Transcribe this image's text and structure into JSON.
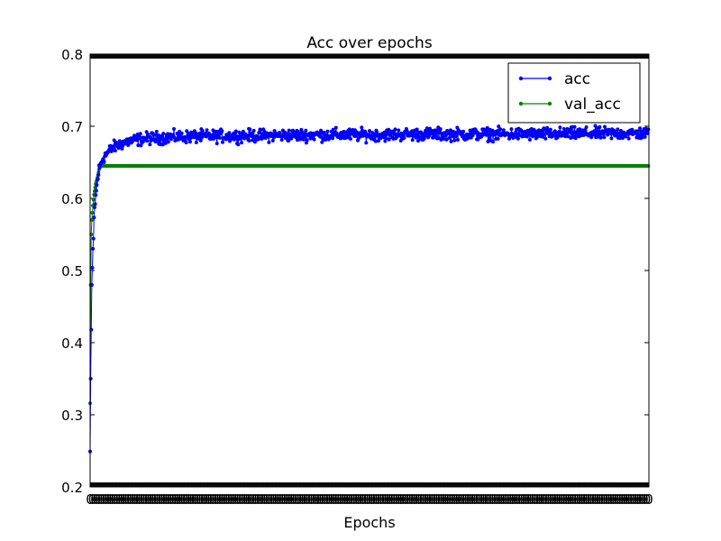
{
  "chart_data": {
    "type": "line",
    "title": "Acc over epochs",
    "xlabel": "Epochs",
    "ylabel": "",
    "ylim": [
      0.2,
      0.8
    ],
    "y_ticks": [
      "0.2",
      "0.3",
      "0.4",
      "0.5",
      "0.6",
      "0.7",
      "0.8"
    ],
    "x_range": [
      0,
      1000
    ],
    "x_tick_label": "0",
    "x_tick_count": 1000,
    "legend_position": "top-right",
    "series": [
      {
        "name": "acc",
        "color": "#0000ff",
        "marker": "dot",
        "x": [
          0,
          1,
          2,
          3,
          4,
          5,
          6,
          7,
          8,
          10,
          12,
          14,
          16,
          18,
          20,
          22,
          25,
          30,
          35,
          40,
          50,
          60,
          70,
          80,
          100,
          150,
          200,
          300,
          400,
          500,
          600,
          700,
          800,
          900,
          999
        ],
        "values": [
          0.249,
          0.35,
          0.418,
          0.48,
          0.503,
          0.523,
          0.542,
          0.57,
          0.587,
          0.602,
          0.618,
          0.63,
          0.64,
          0.645,
          0.65,
          0.654,
          0.658,
          0.662,
          0.666,
          0.67,
          0.674,
          0.677,
          0.679,
          0.681,
          0.683,
          0.685,
          0.686,
          0.687,
          0.688,
          0.688,
          0.689,
          0.689,
          0.689,
          0.69,
          0.69
        ],
        "noise": 0.006
      },
      {
        "name": "val_acc",
        "color": "#008000",
        "marker": "dot",
        "x": [
          0,
          1,
          2,
          3,
          4,
          5,
          6,
          7,
          8,
          10,
          12,
          14,
          16,
          18,
          20,
          999
        ],
        "values": [
          0.316,
          0.48,
          0.55,
          0.57,
          0.58,
          0.59,
          0.598,
          0.605,
          0.61,
          0.62,
          0.625,
          0.632,
          0.64,
          0.644,
          0.645,
          0.645
        ],
        "noise": 0
      }
    ]
  }
}
